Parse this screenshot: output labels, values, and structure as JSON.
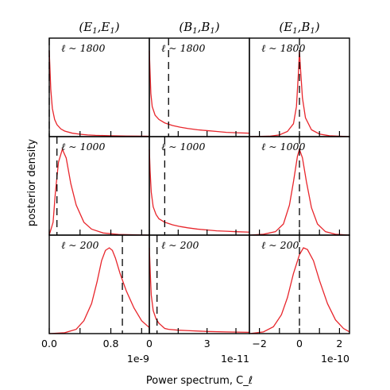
{
  "chart_data": {
    "type": "line",
    "ylabel": "posterior density",
    "xlabel": "Power spectrum, C_ℓ",
    "columns": [
      {
        "title": "(E1,E1)",
        "title_main": "(E",
        "title_sub1": "1",
        "title_mid": ",E",
        "title_sub2": "1",
        "title_end": ")",
        "xlim": [
          0.0,
          1.3
        ],
        "xticks": [
          0.0,
          0.8
        ],
        "xtick_labels": [
          "0.0",
          "0.8"
        ],
        "xminor_ticks": [
          0.4,
          1.2
        ],
        "offset_label": "1e-9"
      },
      {
        "title": "(B1,B1)",
        "title_main": "(B",
        "title_sub1": "1",
        "title_mid": ",B",
        "title_sub2": "1",
        "title_end": ")",
        "xlim": [
          0.0,
          5.2
        ],
        "xticks": [
          0,
          3
        ],
        "xtick_labels": [
          "0",
          "3"
        ],
        "xminor_ticks": [
          1.5,
          4.5
        ],
        "offset_label": "1e-11"
      },
      {
        "title": "(E1,B1)",
        "title_main": "(E",
        "title_sub1": "1",
        "title_mid": ",B",
        "title_sub2": "1",
        "title_end": ")",
        "xlim": [
          -2.5,
          2.5
        ],
        "xticks": [
          -2,
          0,
          2
        ],
        "xtick_labels": [
          "−2",
          "0",
          "2"
        ],
        "xminor_ticks": [
          -1,
          1
        ],
        "offset_label": "1e-10"
      }
    ],
    "rows": [
      {
        "label": "ℓ ∼ 1800",
        "panels": [
          {
            "truth": 0.0,
            "x": [
              0.0,
              0.02,
              0.04,
              0.07,
              0.1,
              0.15,
              0.2,
              0.3,
              0.4,
              0.5,
              0.6,
              0.8,
              1.0,
              1.2,
              1.3
            ],
            "y": [
              1.0,
              0.55,
              0.33,
              0.2,
              0.14,
              0.09,
              0.065,
              0.04,
              0.028,
              0.02,
              0.015,
              0.01,
              0.007,
              0.005,
              0.004
            ]
          },
          {
            "truth": 1.0,
            "x": [
              0.0,
              0.03,
              0.08,
              0.15,
              0.3,
              0.5,
              0.8,
              1.2,
              1.6,
              2.0,
              2.5,
              3.0,
              3.5,
              4.0,
              4.5,
              5.2
            ],
            "y": [
              1.0,
              0.8,
              0.5,
              0.35,
              0.25,
              0.2,
              0.16,
              0.13,
              0.11,
              0.095,
              0.08,
              0.07,
              0.06,
              0.05,
              0.045,
              0.04
            ]
          },
          {
            "truth": 0.0,
            "x": [
              -2.5,
              -1.5,
              -1.0,
              -0.6,
              -0.3,
              -0.15,
              -0.05,
              0.0,
              0.05,
              0.15,
              0.3,
              0.6,
              1.0,
              1.5,
              2.5
            ],
            "y": [
              0.0,
              0.005,
              0.02,
              0.06,
              0.15,
              0.35,
              0.75,
              1.0,
              0.8,
              0.45,
              0.22,
              0.08,
              0.03,
              0.01,
              0.0
            ]
          }
        ]
      },
      {
        "label": "ℓ ∼ 1000",
        "panels": [
          {
            "truth": 0.1,
            "x": [
              0.0,
              0.05,
              0.08,
              0.12,
              0.17,
              0.22,
              0.28,
              0.35,
              0.45,
              0.55,
              0.7,
              0.9,
              1.3
            ],
            "y": [
              0.0,
              0.15,
              0.5,
              0.85,
              1.0,
              0.9,
              0.6,
              0.35,
              0.15,
              0.07,
              0.025,
              0.008,
              0.0
            ]
          },
          {
            "truth": 0.8,
            "x": [
              0.0,
              0.04,
              0.1,
              0.2,
              0.35,
              0.5,
              0.8,
              1.2,
              1.6,
              2.0,
              2.5,
              3.0,
              3.5,
              4.0,
              4.5,
              5.2
            ],
            "y": [
              1.0,
              0.75,
              0.5,
              0.33,
              0.24,
              0.19,
              0.15,
              0.12,
              0.1,
              0.085,
              0.07,
              0.06,
              0.05,
              0.045,
              0.04,
              0.035
            ]
          },
          {
            "truth": 0.0,
            "x": [
              -2.5,
              -1.8,
              -1.2,
              -0.8,
              -0.5,
              -0.3,
              -0.1,
              0.0,
              0.15,
              0.35,
              0.6,
              0.9,
              1.3,
              1.8,
              2.5
            ],
            "y": [
              0.0,
              0.01,
              0.04,
              0.13,
              0.35,
              0.62,
              0.92,
              1.0,
              0.9,
              0.62,
              0.32,
              0.13,
              0.04,
              0.01,
              0.0
            ]
          }
        ]
      },
      {
        "label": "ℓ ∼ 200",
        "panels": [
          {
            "truth": 0.95,
            "x": [
              0.0,
              0.2,
              0.35,
              0.45,
              0.55,
              0.62,
              0.68,
              0.73,
              0.78,
              0.82,
              0.86,
              0.92,
              1.0,
              1.1,
              1.2,
              1.3
            ],
            "y": [
              0.0,
              0.01,
              0.05,
              0.15,
              0.35,
              0.6,
              0.85,
              0.97,
              1.0,
              0.97,
              0.88,
              0.7,
              0.5,
              0.3,
              0.15,
              0.07
            ]
          },
          {
            "truth": 0.4,
            "x": [
              0.0,
              0.05,
              0.1,
              0.2,
              0.35,
              0.5,
              0.6,
              0.7,
              0.8,
              1.0,
              1.5,
              2.0,
              3.0,
              4.0,
              5.2
            ],
            "y": [
              1.0,
              0.7,
              0.45,
              0.27,
              0.17,
              0.12,
              0.1,
              0.08,
              0.06,
              0.05,
              0.04,
              0.035,
              0.025,
              0.02,
              0.015
            ]
          },
          {
            "truth": 0.0,
            "x": [
              -2.5,
              -1.8,
              -1.3,
              -0.9,
              -0.6,
              -0.3,
              0.0,
              0.2,
              0.4,
              0.7,
              1.0,
              1.4,
              1.8,
              2.2,
              2.5
            ],
            "y": [
              0.0,
              0.02,
              0.08,
              0.22,
              0.42,
              0.7,
              0.92,
              1.0,
              0.98,
              0.85,
              0.62,
              0.35,
              0.16,
              0.06,
              0.02
            ]
          }
        ]
      }
    ]
  }
}
